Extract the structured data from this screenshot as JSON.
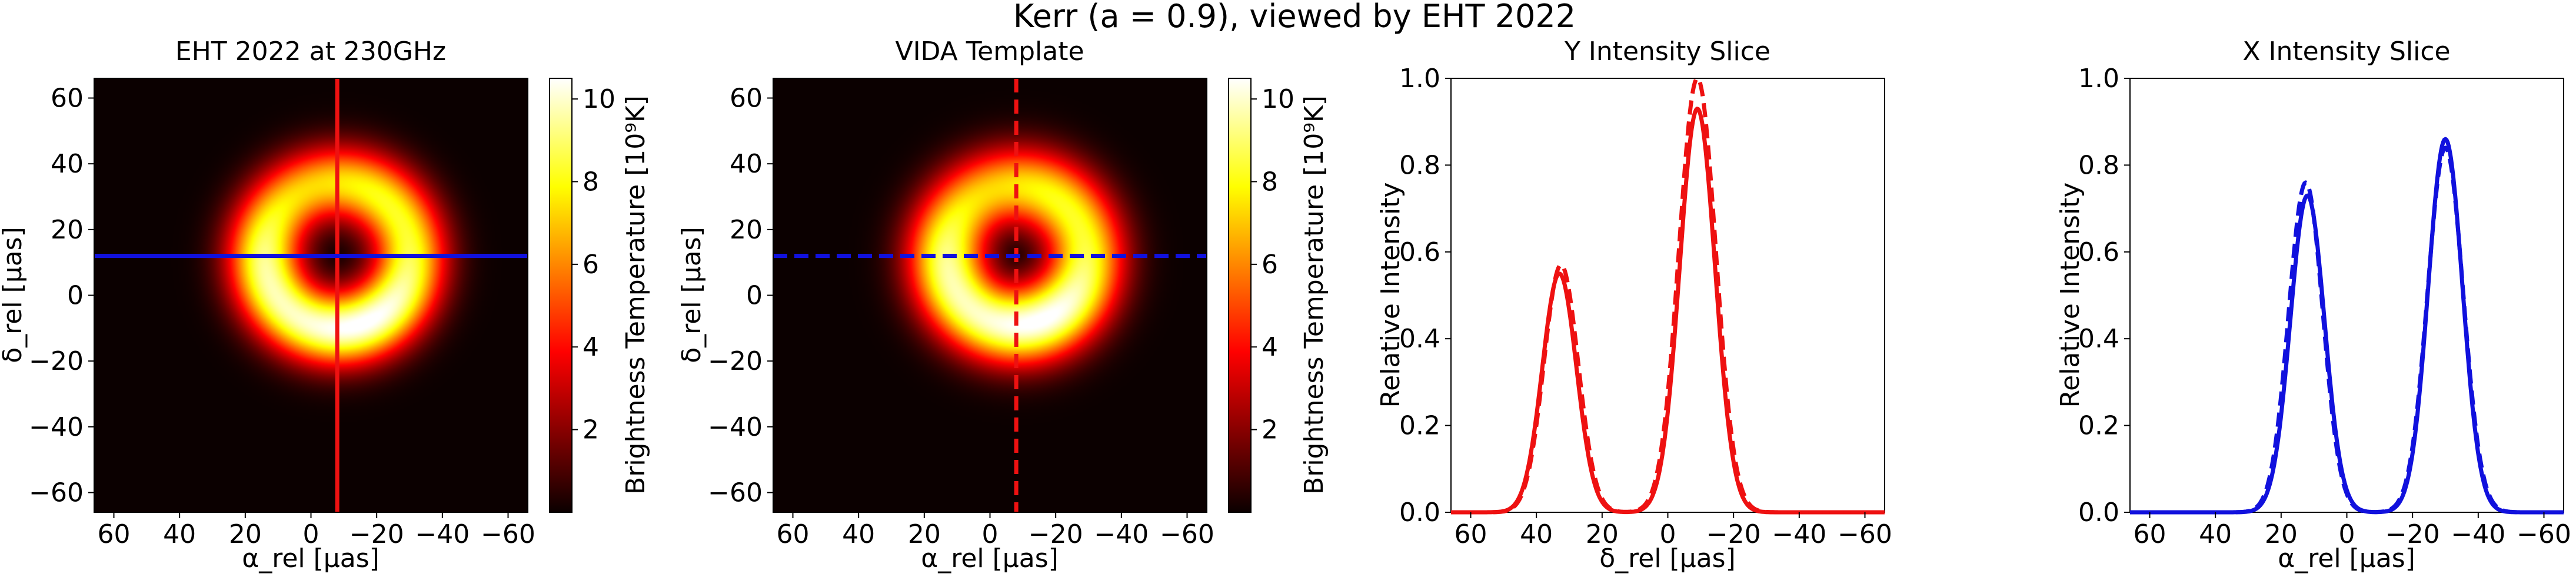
{
  "suptitle": "Kerr (a = 0.9), viewed by EHT 2022",
  "colors": {
    "solid_red": "#ee1111",
    "solid_blue": "#1111dd",
    "axis": "#000000"
  },
  "panels": [
    {
      "id": "p1",
      "title": "EHT 2022 at 230GHz",
      "xlabel": "α_rel [μas]",
      "ylabel": "δ_rel [μas]",
      "colorbar_label": "Brightness Temperature [10⁹K]",
      "cbar_ticks": [
        "2",
        "4",
        "6",
        "8",
        "10"
      ]
    },
    {
      "id": "p2",
      "title": "VIDA Template",
      "xlabel": "α_rel [μas]",
      "ylabel": "δ_rel [μas]",
      "colorbar_label": "Brightness Temperature [10⁹K]",
      "cbar_ticks": [
        "2",
        "4",
        "6",
        "8",
        "10"
      ]
    },
    {
      "id": "p3",
      "title": "Y Intensity Slice",
      "xlabel": "δ_rel [μas]",
      "ylabel": "Relative Intensity"
    },
    {
      "id": "p4",
      "title": "X Intensity Slice",
      "xlabel": "α_rel [μas]",
      "ylabel": "Relative Intensity"
    }
  ],
  "chart_data": [
    {
      "type": "heatmap",
      "title": "EHT 2022 at 230GHz",
      "xlabel": "α_rel [μas]",
      "ylabel": "δ_rel [μas]",
      "xlim": [
        66,
        -66
      ],
      "ylim": [
        -66,
        66
      ],
      "xticks": [
        60,
        40,
        20,
        0,
        -20,
        -40,
        -60
      ],
      "yticks": [
        60,
        40,
        20,
        0,
        -20,
        -40,
        -60
      ],
      "colormap": "hot",
      "colorbar": {
        "label": "Brightness Temperature [10⁹K]",
        "range": [
          0,
          10.5
        ],
        "ticks": [
          2,
          4,
          6,
          8,
          10
        ]
      },
      "ring": {
        "center": [
          -8,
          12
        ],
        "radius": 22,
        "width": 8,
        "peak": 10.5,
        "asymmetry": "brighter at bottom"
      },
      "slices": [
        {
          "axis": "vertical",
          "value": -8,
          "color": "#ee1111",
          "style": "solid"
        },
        {
          "axis": "horizontal",
          "value": 12,
          "color": "#1111dd",
          "style": "solid"
        }
      ]
    },
    {
      "type": "heatmap",
      "title": "VIDA Template",
      "xlabel": "α_rel [μas]",
      "ylabel": "δ_rel [μas]",
      "xlim": [
        66,
        -66
      ],
      "ylim": [
        -66,
        66
      ],
      "xticks": [
        60,
        40,
        20,
        0,
        -20,
        -40,
        -60
      ],
      "yticks": [
        60,
        40,
        20,
        0,
        -20,
        -40,
        -60
      ],
      "colormap": "hot",
      "colorbar": {
        "label": "Brightness Temperature [10⁹K]",
        "range": [
          0,
          10.5
        ],
        "ticks": [
          2,
          4,
          6,
          8,
          10
        ]
      },
      "ring": {
        "center": [
          -8,
          12
        ],
        "radius": 21,
        "width": 8.5,
        "peak": 10.5,
        "asymmetry": "brighter at bottom"
      },
      "slices": [
        {
          "axis": "vertical",
          "value": -8,
          "color": "#ee1111",
          "style": "dashed"
        },
        {
          "axis": "horizontal",
          "value": 12,
          "color": "#1111dd",
          "style": "dashed"
        }
      ]
    },
    {
      "type": "line",
      "title": "Y Intensity Slice",
      "xlabel": "δ_rel [μas]",
      "ylabel": "Relative Intensity",
      "xlim": [
        66,
        -66
      ],
      "ylim": [
        0,
        1.0
      ],
      "xticks": [
        60,
        40,
        20,
        0,
        -20,
        -40,
        -60
      ],
      "yticks": [
        0.0,
        0.2,
        0.4,
        0.6,
        0.8,
        1.0
      ],
      "series": [
        {
          "style": "solid",
          "color": "#ee1111",
          "peaks": [
            {
              "x": 33,
              "y": 0.55,
              "sigma": 5.2
            },
            {
              "x": -9,
              "y": 0.93,
              "sigma": 5.4
            }
          ]
        },
        {
          "style": "dashed",
          "color": "#ee1111",
          "peaks": [
            {
              "x": 32.5,
              "y": 0.57,
              "sigma": 5.2
            },
            {
              "x": -9,
              "y": 1.0,
              "sigma": 5.6
            }
          ]
        }
      ]
    },
    {
      "type": "line",
      "title": "X Intensity Slice",
      "xlabel": "α_rel [μas]",
      "ylabel": "Relative Intensity",
      "xlim": [
        66,
        -66
      ],
      "ylim": [
        0,
        1.0
      ],
      "xticks": [
        60,
        40,
        20,
        0,
        -20,
        -40,
        -60
      ],
      "yticks": [
        0.0,
        0.2,
        0.4,
        0.6,
        0.8,
        1.0
      ],
      "series": [
        {
          "style": "solid",
          "color": "#1111dd",
          "peaks": [
            {
              "x": 12,
              "y": 0.73,
              "sigma": 5.2
            },
            {
              "x": -30,
              "y": 0.86,
              "sigma": 5.2
            }
          ]
        },
        {
          "style": "dashed",
          "color": "#1111dd",
          "peaks": [
            {
              "x": 12.5,
              "y": 0.76,
              "sigma": 5.2
            },
            {
              "x": -30,
              "y": 0.84,
              "sigma": 5.4
            }
          ]
        }
      ]
    }
  ]
}
